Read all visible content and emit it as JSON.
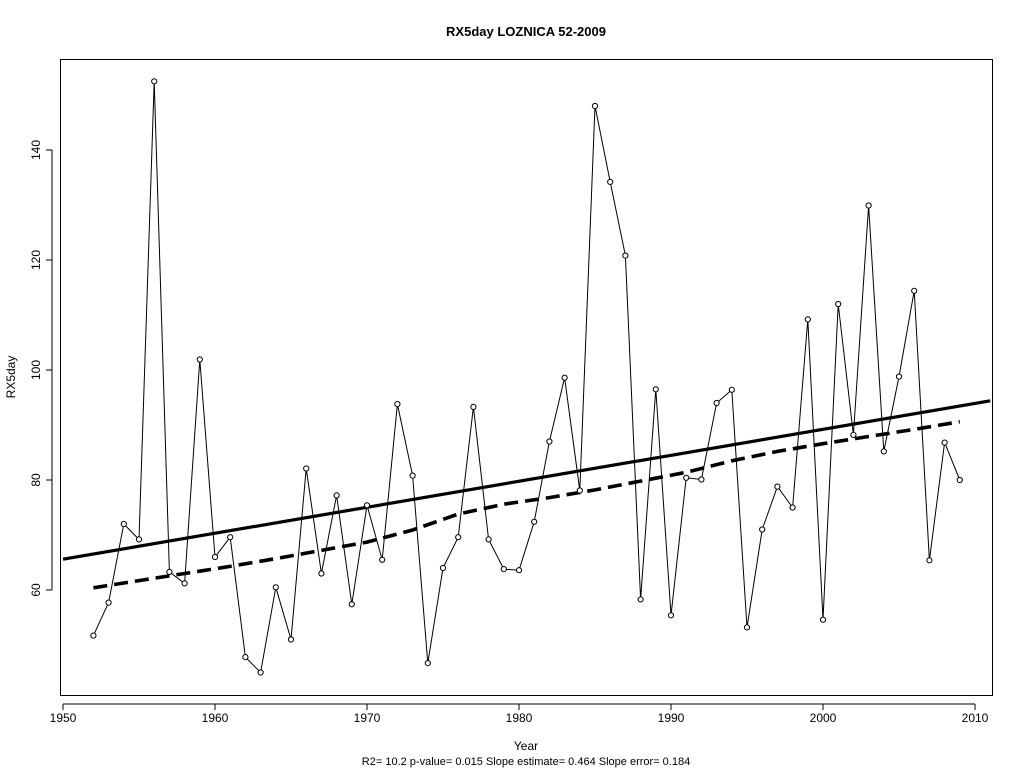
{
  "chart_data": {
    "type": "line",
    "title": "RX5day   LOZNICA 52-2009",
    "xlabel": "Year",
    "ylabel": "RX5day",
    "footnote": "R2= 10.2  p-value= 0.015  Slope estimate= 0.464  Slope error= 0.184",
    "xlim": [
      1950,
      2010
    ],
    "ylim": [
      43,
      155
    ],
    "x_ticks": [
      1950,
      1960,
      1970,
      1980,
      1990,
      2000,
      2010
    ],
    "y_ticks": [
      60,
      80,
      100,
      120,
      140
    ],
    "grid": false,
    "legend": "none",
    "series": [
      {
        "x": [
          1952,
          1953,
          1954,
          1955,
          1956,
          1957,
          1958,
          1959,
          1960,
          1961,
          1962,
          1963,
          1964,
          1965,
          1966,
          1967,
          1968,
          1969,
          1970,
          1971,
          1972,
          1973,
          1974,
          1975,
          1976,
          1977,
          1978,
          1979,
          1980,
          1981,
          1982,
          1983,
          1984,
          1985,
          1986,
          1987,
          1988,
          1989,
          1990,
          1991,
          1992,
          1993,
          1994,
          1995,
          1996,
          1997,
          1998,
          1999,
          2000,
          2001,
          2002,
          2003,
          2004,
          2005,
          2006,
          2007,
          2008,
          2009
        ],
        "values": [
          51.7,
          57.7,
          72.0,
          69.2,
          152.5,
          63.3,
          61.2,
          101.9,
          66.0,
          69.6,
          47.8,
          45.0,
          60.5,
          51.0,
          82.1,
          63.0,
          77.2,
          57.4,
          75.4,
          65.5,
          93.8,
          80.8,
          46.7,
          64.0,
          69.6,
          93.3,
          69.2,
          63.8,
          63.6,
          72.4,
          87.0,
          98.6,
          78.1,
          148.0,
          134.2,
          120.8,
          58.3,
          96.5,
          55.4,
          80.4,
          80.1,
          94.0,
          96.4,
          53.2,
          71.0,
          78.8,
          75.0,
          109.2,
          54.6,
          112.0,
          88.2,
          129.9,
          85.2,
          98.8,
          114.4,
          65.4,
          86.8,
          80.0
        ]
      },
      {
        "x": [
          1950,
          2011
        ],
        "values": [
          65.6,
          94.4
        ]
      },
      {
        "x": [
          1952,
          1955,
          1958,
          1961,
          1964,
          1967,
          1970,
          1973,
          1976,
          1979,
          1982,
          1985,
          1988,
          1991,
          1994,
          1997,
          2000,
          2003,
          2006,
          2009
        ],
        "values": [
          60.4,
          61.7,
          63.0,
          64.3,
          65.7,
          67.2,
          68.7,
          70.9,
          73.8,
          75.6,
          76.8,
          78.2,
          79.8,
          81.4,
          83.5,
          85.2,
          86.6,
          87.9,
          89.2,
          90.6
        ]
      }
    ]
  }
}
